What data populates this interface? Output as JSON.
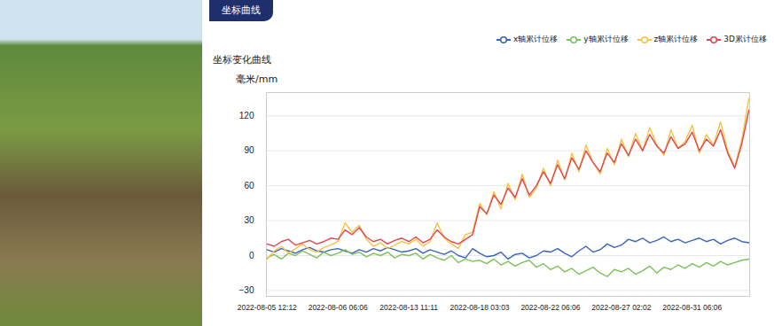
{
  "chart_data": {
    "type": "line",
    "title": "坐标曲线",
    "subtitle": "坐标变化曲线",
    "y_label": "毫米/mm",
    "categories": [
      "2022-08-05 12:12",
      null,
      null,
      null,
      null,
      null,
      null,
      null,
      null,
      null,
      "2022-08-06 06:06",
      null,
      null,
      null,
      null,
      null,
      null,
      null,
      null,
      null,
      "2022-08-13 11:11",
      null,
      null,
      null,
      null,
      null,
      null,
      null,
      null,
      null,
      "2022-08-18 03:03",
      null,
      null,
      null,
      null,
      null,
      null,
      null,
      null,
      null,
      "2022-08-22 06:06",
      null,
      null,
      null,
      null,
      null,
      null,
      null,
      null,
      null,
      "2022-08-27 02:02",
      null,
      null,
      null,
      null,
      null,
      null,
      null,
      null,
      null,
      "2022-08-31 06:06",
      null,
      null,
      null,
      null,
      null,
      null,
      null,
      null
    ],
    "series": [
      {
        "name": "x轴累计位移",
        "color": "#3a64b8",
        "values": [
          5,
          3,
          6,
          4,
          2,
          5,
          7,
          4,
          3,
          5,
          6,
          4,
          2,
          5,
          3,
          6,
          4,
          7,
          5,
          3,
          4,
          6,
          2,
          5,
          3,
          1,
          4,
          0,
          -2,
          6,
          2,
          -1,
          0,
          3,
          -3,
          1,
          2,
          -2,
          0,
          4,
          3,
          6,
          2,
          -1,
          4,
          8,
          3,
          5,
          10,
          7,
          9,
          14,
          12,
          15,
          11,
          13,
          16,
          12,
          14,
          11,
          13,
          15,
          12,
          14,
          10,
          13,
          15,
          12,
          11
        ]
      },
      {
        "name": "y轴累计位移",
        "color": "#7cc15a",
        "values": [
          -2,
          1,
          -3,
          2,
          0,
          4,
          1,
          -2,
          3,
          0,
          2,
          5,
          1,
          3,
          -1,
          2,
          0,
          3,
          -2,
          1,
          0,
          2,
          -3,
          1,
          -2,
          -4,
          0,
          -6,
          -3,
          -5,
          -4,
          -7,
          -3,
          -8,
          -5,
          -9,
          -6,
          -4,
          -10,
          -7,
          -12,
          -9,
          -14,
          -11,
          -16,
          -13,
          -10,
          -15,
          -18,
          -12,
          -14,
          -11,
          -16,
          -13,
          -9,
          -15,
          -10,
          -12,
          -8,
          -11,
          -7,
          -10,
          -6,
          -9,
          -5,
          -8,
          -6,
          -4,
          -3
        ]
      },
      {
        "name": "z轴累计位移",
        "color": "#f5c342",
        "values": [
          -3,
          4,
          8,
          2,
          6,
          10,
          5,
          3,
          7,
          9,
          12,
          28,
          20,
          26,
          14,
          8,
          11,
          6,
          9,
          12,
          10,
          14,
          8,
          12,
          28,
          15,
          10,
          6,
          18,
          20,
          45,
          35,
          55,
          40,
          62,
          48,
          70,
          50,
          58,
          75,
          60,
          82,
          65,
          88,
          72,
          95,
          80,
          70,
          92,
          78,
          100,
          85,
          105,
          90,
          110,
          95,
          86,
          108,
          92,
          98,
          112,
          88,
          104,
          95,
          115,
          90,
          76,
          100,
          135
        ]
      },
      {
        "name": "3D累计位移",
        "color": "#e0464f",
        "values": [
          10,
          8,
          12,
          14,
          9,
          11,
          13,
          10,
          12,
          15,
          14,
          22,
          18,
          24,
          16,
          12,
          14,
          10,
          13,
          15,
          12,
          16,
          11,
          14,
          22,
          16,
          12,
          10,
          14,
          18,
          42,
          36,
          52,
          44,
          58,
          50,
          66,
          52,
          60,
          72,
          62,
          78,
          66,
          84,
          74,
          90,
          80,
          72,
          88,
          80,
          96,
          86,
          100,
          90,
          104,
          94,
          88,
          102,
          92,
          96,
          106,
          90,
          100,
          94,
          108,
          88,
          75,
          96,
          125
        ]
      }
    ],
    "ylim": [
      -35,
      140
    ],
    "yticks": [
      -30,
      0,
      30,
      60,
      90,
      120
    ],
    "grid": true,
    "legend": "top-right"
  }
}
